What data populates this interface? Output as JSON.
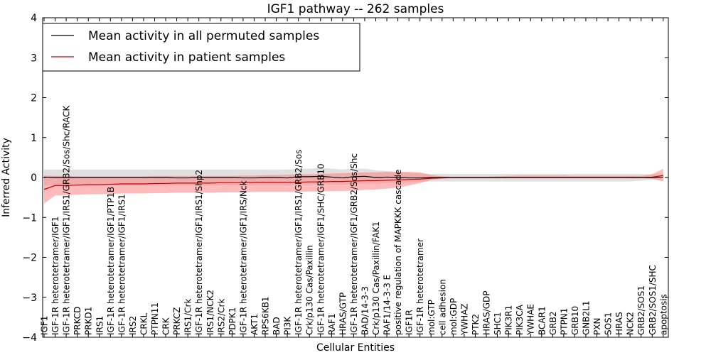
{
  "chart_data": {
    "type": "line",
    "title": "IGF1 pathway -- 262 samples",
    "xlabel": "Cellular Entities",
    "ylabel": "Inferred Activity",
    "ylim": [
      -4,
      4
    ],
    "yticks": [
      -4,
      -3,
      -2,
      -1,
      0,
      1,
      2,
      3,
      4
    ],
    "ytick_labels": [
      "−4",
      "−3",
      "−2",
      "−1",
      "0",
      "1",
      "2",
      "3",
      "4"
    ],
    "legend_position": "top-left",
    "categories": [
      "IGF1",
      "IGF-1R heterotetramer/IGF1",
      "IGF-1R heterotetramer/IGF1/IRS1/GRB2/Sos/Shc/RACK",
      "PRKCD",
      "PRKD1",
      "IRS1",
      "IGF-1R heterotetramer/IGF1/PTP1B",
      "IGF-1R heterotetramer/IGF1/IRS1",
      "IRS2",
      "CRKL",
      "PTPN11",
      "CRK",
      "PRKCZ",
      "IRS1/Crk",
      "IGF-1R heterotetramer/IGF1/IRS1/Shp2",
      "IRS1/NCK2",
      "IRS2/Crk",
      "PDPK1",
      "IGF-1R heterotetramer/IGF1/IRS/Nck",
      "AKT1",
      "RPS6KB1",
      "BAD",
      "PI3K",
      "IGF-1R heterotetramer/IGF1/IRS1/GRB2/Sos",
      "Crk/p130 Cas/Paxillin",
      "IGF-1R heterotetramer/IGF1/SHC/GRB10",
      "RAF1",
      "HRAS/GTP",
      "IGF-1R heterotetramer/IGF1/GRB2/Sos/Shc",
      "BAD/14-3-3",
      "Crk/p130 Cas/Paxillin/FAK1",
      "RAF1/14-3-3 E",
      "positive regulation of MAPKKK cascade",
      "IGF1R",
      "IGF-1R heterotetramer",
      "mol:GTP",
      "cell adhesion",
      "mol:GDP",
      "YWHAZ",
      "PTK2",
      "HRAS/GDP",
      "SHC1",
      "PIK3R1",
      "PIK3CA",
      "YWHAE",
      "BCAR1",
      "GRB2",
      "PTPN1",
      "GRB10",
      "GNB2L1",
      "PXN",
      "SOS1",
      "HRAS",
      "NCK2",
      "GRB2/SOS1",
      "GRB2/SOS1/SHC",
      "apoptosis"
    ],
    "series": [
      {
        "name": "Mean activity in all permuted samples",
        "color": "#000000",
        "values": [
          0.01,
          0.0,
          0.0,
          0.0,
          0.0,
          0.0,
          0.0,
          0.0,
          0.0,
          0.0,
          0.0,
          0.0,
          -0.01,
          -0.01,
          0.0,
          0.0,
          0.0,
          0.0,
          -0.01,
          -0.01,
          0.0,
          0.0,
          -0.01,
          0.02,
          0.02,
          0.03,
          0.01,
          -0.01,
          0.02,
          0.03,
          0.0,
          0.01,
          0.0,
          -0.01,
          -0.01,
          0.0,
          0.0,
          0.0,
          0.0,
          0.0,
          0.0,
          0.0,
          0.0,
          0.0,
          0.0,
          0.0,
          0.0,
          0.0,
          0.0,
          0.0,
          0.0,
          0.0,
          0.0,
          0.0,
          0.0,
          0.0,
          0.01
        ],
        "band": {
          "color": "#bbbbbb",
          "lower": [
            -0.2,
            -0.2,
            -0.2,
            -0.2,
            -0.2,
            -0.2,
            -0.2,
            -0.2,
            -0.2,
            -0.2,
            -0.2,
            -0.2,
            -0.2,
            -0.2,
            -0.2,
            -0.2,
            -0.2,
            -0.2,
            -0.2,
            -0.2,
            -0.2,
            -0.2,
            -0.2,
            -0.18,
            -0.18,
            -0.16,
            -0.17,
            -0.18,
            -0.16,
            -0.15,
            -0.15,
            -0.14,
            -0.13,
            -0.12,
            -0.11,
            -0.1,
            -0.1,
            -0.1,
            -0.1,
            -0.1,
            -0.1,
            -0.1,
            -0.1,
            -0.1,
            -0.1,
            -0.1,
            -0.1,
            -0.1,
            -0.1,
            -0.1,
            -0.1,
            -0.1,
            -0.1,
            -0.1,
            -0.08,
            -0.06,
            -0.05
          ],
          "upper": [
            0.2,
            0.2,
            0.2,
            0.2,
            0.2,
            0.2,
            0.2,
            0.2,
            0.2,
            0.2,
            0.2,
            0.2,
            0.2,
            0.2,
            0.2,
            0.2,
            0.2,
            0.2,
            0.2,
            0.2,
            0.2,
            0.2,
            0.2,
            0.22,
            0.22,
            0.24,
            0.22,
            0.2,
            0.22,
            0.22,
            0.18,
            0.16,
            0.14,
            0.12,
            0.1,
            0.09,
            0.09,
            0.09,
            0.09,
            0.09,
            0.09,
            0.09,
            0.09,
            0.09,
            0.09,
            0.09,
            0.09,
            0.09,
            0.09,
            0.09,
            0.09,
            0.09,
            0.09,
            0.09,
            0.09,
            0.08,
            0.08
          ]
        }
      },
      {
        "name": "Mean activity in patient samples",
        "color": "#cc0000",
        "values": [
          -0.3,
          -0.2,
          -0.2,
          -0.19,
          -0.18,
          -0.18,
          -0.17,
          -0.16,
          -0.16,
          -0.16,
          -0.15,
          -0.15,
          -0.14,
          -0.14,
          -0.14,
          -0.14,
          -0.13,
          -0.13,
          -0.13,
          -0.12,
          -0.12,
          -0.12,
          -0.12,
          -0.12,
          -0.11,
          -0.11,
          -0.1,
          -0.1,
          -0.09,
          -0.08,
          -0.08,
          -0.07,
          -0.06,
          -0.05,
          -0.04,
          -0.02,
          -0.01,
          0.0,
          0.0,
          0.0,
          0.0,
          0.0,
          0.0,
          0.0,
          0.0,
          0.0,
          0.0,
          0.0,
          0.0,
          0.0,
          0.0,
          0.0,
          0.0,
          0.0,
          0.0,
          0.01,
          0.05
        ],
        "band": {
          "color": "#ff7777",
          "lower": [
            -0.65,
            -0.45,
            -0.44,
            -0.43,
            -0.42,
            -0.42,
            -0.41,
            -0.4,
            -0.4,
            -0.4,
            -0.39,
            -0.39,
            -0.38,
            -0.38,
            -0.38,
            -0.38,
            -0.37,
            -0.37,
            -0.37,
            -0.36,
            -0.36,
            -0.36,
            -0.36,
            -0.36,
            -0.35,
            -0.35,
            -0.34,
            -0.34,
            -0.33,
            -0.31,
            -0.3,
            -0.28,
            -0.25,
            -0.2,
            -0.14,
            -0.06,
            -0.03,
            -0.02,
            -0.02,
            -0.02,
            -0.02,
            -0.02,
            -0.02,
            -0.02,
            -0.02,
            -0.02,
            -0.02,
            -0.02,
            -0.02,
            -0.02,
            -0.02,
            -0.02,
            -0.02,
            -0.02,
            -0.02,
            -0.03,
            -0.1
          ],
          "upper": [
            0.05,
            0.04,
            0.04,
            0.03,
            0.03,
            0.03,
            0.03,
            0.03,
            0.03,
            0.03,
            0.04,
            0.04,
            0.04,
            0.04,
            0.04,
            0.04,
            0.04,
            0.04,
            0.05,
            0.05,
            0.06,
            0.06,
            0.07,
            0.08,
            0.08,
            0.09,
            0.1,
            0.11,
            0.12,
            0.13,
            0.13,
            0.14,
            0.14,
            0.14,
            0.13,
            0.06,
            0.03,
            0.02,
            0.02,
            0.02,
            0.02,
            0.03,
            0.04,
            0.05,
            0.05,
            0.05,
            0.05,
            0.05,
            0.04,
            0.04,
            0.04,
            0.04,
            0.04,
            0.04,
            0.04,
            0.08,
            0.22
          ]
        }
      }
    ]
  }
}
